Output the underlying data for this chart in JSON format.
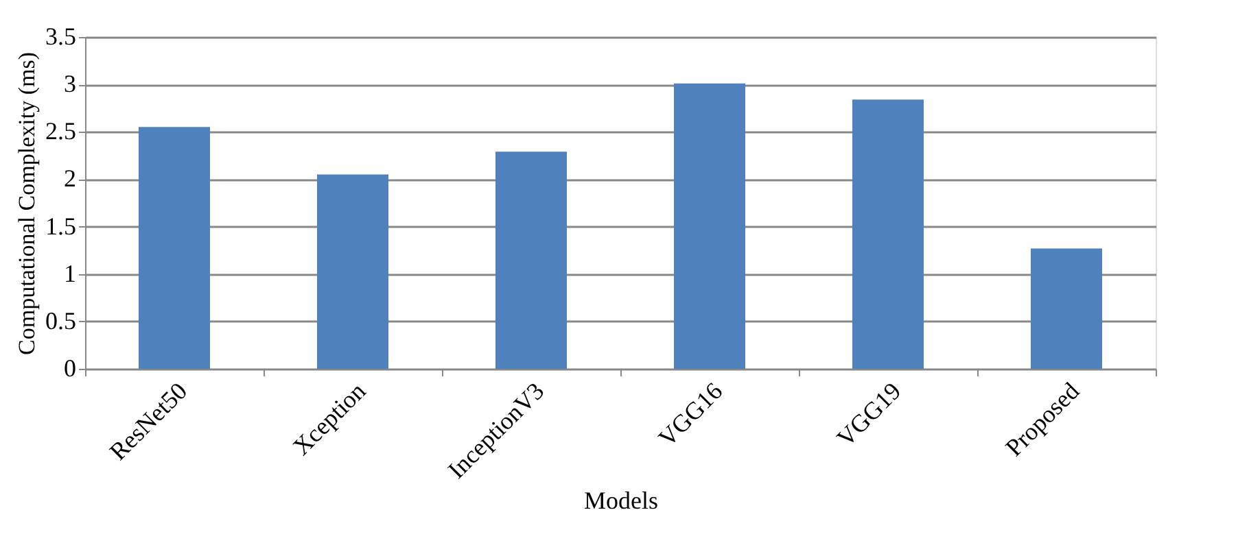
{
  "chart_data": {
    "type": "bar",
    "xlabel": "Models",
    "ylabel": "Computational Complexity (ms)",
    "categories": [
      "ResNet50",
      "Xception",
      "InceptionV3",
      "VGG16",
      "VGG19",
      "Proposed"
    ],
    "values": [
      2.55,
      2.05,
      2.29,
      3.01,
      2.84,
      1.27
    ],
    "color": "#4f81bd",
    "ylim": [
      0,
      3.5
    ],
    "yticks": [
      0,
      0.5,
      1,
      1.5,
      2,
      2.5,
      3,
      3.5
    ],
    "grid": "y"
  }
}
